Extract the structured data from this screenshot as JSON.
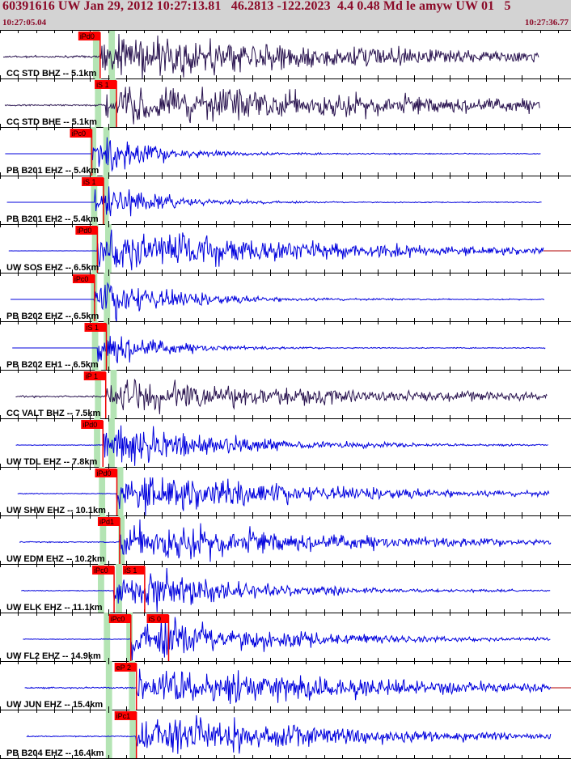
{
  "header": {
    "title": "60391616 UW Jan 29, 2012 10:27:13.81   46.2813 -122.2023  4.4 0.48 Md le amyw UW 01   5",
    "time_start": "10:27:05.04",
    "time_end": "10:27:36.77"
  },
  "chart_data": {
    "type": "line",
    "title": "60391616 UW Jan 29, 2012 10:27:13.81   46.2813 -122.2023  4.4 0.48 Md le amyw UW 01   5",
    "x_range": [
      "10:27:05.04",
      "10:27:36.77"
    ],
    "series": [
      {
        "name": "CC STD BHZ -- 5.1km",
        "color": "#2a1450",
        "picks": [
          {
            "label": "iPd0",
            "t": 5.4
          }
        ],
        "onset": 5.4,
        "s": 6.4,
        "peak": 0.9,
        "noise": 0.15,
        "decay": 18,
        "coda_ext": false
      },
      {
        "name": "CC STD BHE -- 5.1km",
        "color": "#2a1450",
        "picks": [
          {
            "label": "iS 1",
            "t": 6.2
          }
        ],
        "onset": 5.6,
        "s": 6.4,
        "peak": 0.95,
        "noise": 0.12,
        "decay": 18,
        "coda_ext": false
      },
      {
        "name": "PB B201 EHZ -- 5.4km",
        "color": "#0000dd",
        "picks": [
          {
            "label": "iPc0",
            "t": 5.1
          }
        ],
        "onset": 5.1,
        "s": 5.9,
        "peak": 0.9,
        "noise": 0.0,
        "decay": 3,
        "coda_ext": false
      },
      {
        "name": "PB B201 EH2 -- 5.4km",
        "color": "#0000dd",
        "picks": [
          {
            "label": "iS 1",
            "t": 5.7
          }
        ],
        "onset": 5.2,
        "s": 5.7,
        "peak": 0.9,
        "noise": 0.0,
        "decay": 3,
        "coda_ext": false
      },
      {
        "name": "UW SOS EHZ -- 6.5km",
        "color": "#0000dd",
        "picks": [
          {
            "label": "iPd0",
            "t": 5.3
          }
        ],
        "onset": 5.3,
        "s": 6.0,
        "peak": 0.95,
        "noise": 0.02,
        "decay": 12,
        "coda_ext": true
      },
      {
        "name": "PB B202 EHZ -- 6.5km",
        "color": "#0000dd",
        "picks": [
          {
            "label": "iPc0",
            "t": 5.2
          }
        ],
        "onset": 5.2,
        "s": 5.9,
        "peak": 0.95,
        "noise": 0.0,
        "decay": 4,
        "coda_ext": false
      },
      {
        "name": "PB B202 EH1 -- 6.5km",
        "color": "#0000dd",
        "picks": [
          {
            "label": "iS 1",
            "t": 5.8
          }
        ],
        "onset": 5.3,
        "s": 5.8,
        "peak": 0.9,
        "noise": 0.0,
        "decay": 3,
        "coda_ext": false
      },
      {
        "name": "CC VALT BHZ -- 7.5km",
        "color": "#2a1450",
        "picks": [
          {
            "label": "iP 1",
            "t": 5.6
          }
        ],
        "onset": 5.6,
        "s": 6.5,
        "peak": 0.7,
        "noise": 0.12,
        "decay": 14,
        "coda_ext": false
      },
      {
        "name": "UW TDL EHZ -- 7.8km",
        "color": "#0000dd",
        "picks": [
          {
            "label": "iPd0",
            "t": 5.5
          }
        ],
        "onset": 5.5,
        "s": 6.3,
        "peak": 0.95,
        "noise": 0.05,
        "decay": 6,
        "coda_ext": false
      },
      {
        "name": "UW SHW EHZ -- 10.1km",
        "color": "#0000dd",
        "picks": [
          {
            "label": "iPd0",
            "t": 6.0
          }
        ],
        "onset": 6.0,
        "s": 7.1,
        "peak": 0.9,
        "noise": 0.06,
        "decay": 10,
        "coda_ext": false
      },
      {
        "name": "UW EDM EHZ -- 10.2km",
        "color": "#0000dd",
        "picks": [
          {
            "label": "iPd1",
            "t": 6.1
          }
        ],
        "onset": 6.1,
        "s": 7.2,
        "peak": 0.9,
        "noise": 0.08,
        "decay": 11,
        "coda_ext": false
      },
      {
        "name": "UW ELK EHZ -- 11.1km",
        "color": "#0000dd",
        "picks": [
          {
            "label": "iPc0",
            "t": 5.9
          },
          {
            "label": "iS 1",
            "t": 7.0
          }
        ],
        "onset": 5.9,
        "s": 7.0,
        "peak": 0.95,
        "noise": 0.06,
        "decay": 6,
        "coda_ext": false
      },
      {
        "name": "UW FL2 EHZ -- 14.9km",
        "color": "#0000dd",
        "picks": [
          {
            "label": "iPc0",
            "t": 6.5
          },
          {
            "label": "iS 0",
            "t": 8.0
          }
        ],
        "onset": 6.5,
        "s": 8.0,
        "peak": 0.95,
        "noise": 0.06,
        "decay": 7,
        "coda_ext": false
      },
      {
        "name": "UW JUN EHZ -- 15.4km",
        "color": "#0000dd",
        "picks": [
          {
            "label": "eP 2",
            "t": 6.7
          }
        ],
        "onset": 6.7,
        "s": 8.2,
        "peak": 0.95,
        "noise": 0.1,
        "decay": 12,
        "coda_ext": true
      },
      {
        "name": "PB B204 EHZ -- 16.4km",
        "color": "#0000dd",
        "picks": [
          {
            "label": "iPc1",
            "t": 6.7
          }
        ],
        "onset": 6.7,
        "s": 8.3,
        "peak": 0.95,
        "noise": 0.08,
        "decay": 10,
        "coda_ext": false
      }
    ],
    "p_bands": [
      {
        "label": "P",
        "t_start": 5.0,
        "t_end": 5.35
      }
    ],
    "s_bands": [
      {
        "label": "S",
        "t_start": 5.7,
        "t_end": 6.05
      }
    ],
    "grid": true,
    "grid_step_s": 1.0
  },
  "colors": {
    "header_bg": "#d3d3d3",
    "header_text": "#8b0a28",
    "pick_box": "#ff0000",
    "pick_line": "#ee0000",
    "band": "#b4e4b4",
    "grid": "#000000",
    "coda": "#b00000"
  }
}
